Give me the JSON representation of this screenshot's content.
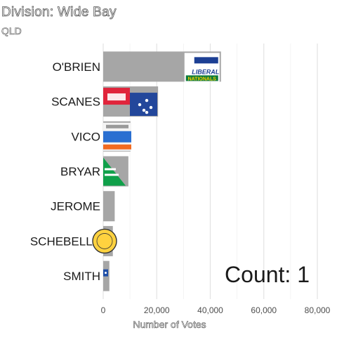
{
  "chart_data": {
    "type": "bar",
    "orientation": "horizontal",
    "title": "Division: Wide Bay",
    "subtitle": "QLD",
    "xlabel": "Number of Votes",
    "ylabel": "",
    "xlim": [
      0,
      80000
    ],
    "x_ticks": [
      "0",
      "20,000",
      "40,000",
      "60,000",
      "80,000"
    ],
    "x_tick_values": [
      0,
      20000,
      40000,
      60000,
      80000
    ],
    "grid": true,
    "categories": [
      "O'BRIEN",
      "SCANES",
      "VICO",
      "BRYAR",
      "JEROME",
      "SCHEBELLA",
      "SMITH"
    ],
    "values": [
      44000,
      20500,
      10200,
      9400,
      4300,
      3600,
      2300
    ],
    "party_logos": [
      "liberal-nationals",
      "labor",
      "one-nation",
      "greens",
      "",
      "yellow-party",
      "blue-party"
    ],
    "logo_texts": {
      "liberal_line1": "LIBERAL",
      "liberal_line2": "NATIONALS"
    },
    "annotation": "Count:  1",
    "bar_color": "#a6a6a6"
  }
}
